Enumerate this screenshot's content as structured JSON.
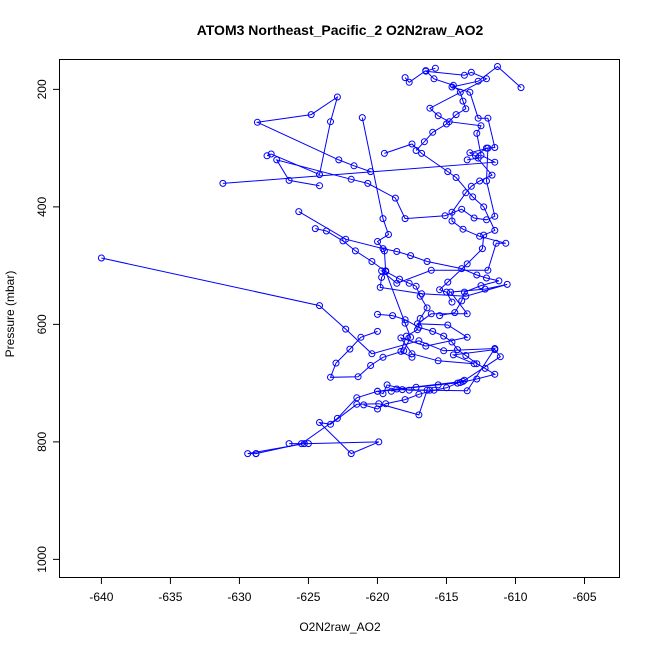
{
  "chart_data": {
    "type": "line",
    "title": "ATOM3 Northeast_Pacific_2 O2N2raw_AO2",
    "xlabel": "O2N2raw_AO2",
    "ylabel": "Pressure (mbar)",
    "xlim": [
      -643,
      -602.5
    ],
    "ylim": [
      1030,
      150
    ],
    "y_reversed": true,
    "grid": false,
    "legend": "none",
    "x_ticks": [
      -640,
      -635,
      -630,
      -625,
      -620,
      -615,
      -610,
      -605
    ],
    "y_ticks": [
      200,
      400,
      600,
      800,
      1000
    ],
    "series_color": "#0000ff",
    "marker": "open-circle",
    "series": [
      {
        "points": [
          [
            -628.8,
            820
          ],
          [
            -629.4,
            820
          ],
          [
            -625.3,
            803
          ],
          [
            -626.4,
            803
          ],
          [
            -625.0,
            803
          ],
          [
            -619.9,
            800
          ],
          [
            -621.9,
            820
          ],
          [
            -624.2,
            767
          ],
          [
            -623.4,
            770
          ],
          [
            -621.5,
            736
          ],
          [
            -619.9,
            735
          ],
          [
            -617.0,
            754
          ],
          [
            -616.4,
            712
          ],
          [
            -617.7,
            712
          ],
          [
            -619.3,
            703
          ],
          [
            -619.6,
            718
          ],
          [
            -620.0,
            714
          ],
          [
            -613.8,
            697
          ],
          [
            -611.1,
            655
          ],
          [
            -611.5,
            643
          ],
          [
            -614.5,
            652
          ],
          [
            -613.0,
            667
          ],
          [
            -615.6,
            662
          ],
          [
            -617.5,
            650
          ],
          [
            -618.3,
            623
          ],
          [
            -616.5,
            637
          ],
          [
            -613.5,
            622
          ],
          [
            -614.9,
            601
          ],
          [
            -617.1,
            599
          ],
          [
            -616.1,
            582
          ],
          [
            -613.5,
            582
          ],
          [
            -614.7,
            545
          ],
          [
            -612.2,
            540
          ],
          [
            -610.6,
            532
          ],
          [
            -613.6,
            552
          ],
          [
            -616.8,
            548
          ],
          [
            -619.8,
            537
          ],
          [
            -619.7,
            520
          ],
          [
            -619.4,
            509
          ],
          [
            -619.7,
            509
          ],
          [
            -618.6,
            530
          ],
          [
            -616.1,
            508
          ],
          [
            -612.0,
            508
          ],
          [
            -611.4,
            462
          ],
          [
            -610.7,
            462
          ],
          [
            -612.6,
            450
          ],
          [
            -613.8,
            438
          ],
          [
            -614.6,
            424
          ],
          [
            -614.6,
            409
          ],
          [
            -613.6,
            376
          ],
          [
            -613.2,
            365
          ],
          [
            -612.6,
            356
          ],
          [
            -611.7,
            346
          ],
          [
            -612.9,
            313
          ],
          [
            -612.1,
            300
          ],
          [
            -611.5,
            299
          ],
          [
            -612.0,
            249
          ],
          [
            -612.7,
            249
          ],
          [
            -613.3,
            205
          ],
          [
            -614.6,
            196
          ],
          [
            -612.7,
            186
          ],
          [
            -611.3,
            161
          ],
          [
            -609.6,
            197
          ]
        ]
      },
      {
        "points": [
          [
            -640.0,
            487
          ],
          [
            -624.2,
            568
          ],
          [
            -622.3,
            608
          ],
          [
            -620.4,
            650
          ],
          [
            -617.0,
            628
          ],
          [
            -615.2,
            645
          ],
          [
            -611.5,
            641
          ],
          [
            -613.5,
            713
          ],
          [
            -616.2,
            712
          ],
          [
            -618.2,
            711
          ],
          [
            -620.0,
            714
          ],
          [
            -621.5,
            725
          ],
          [
            -622.9,
            760
          ],
          [
            -625.5,
            803
          ],
          [
            -628.8,
            820
          ]
        ]
      },
      {
        "points": [
          [
            -631.2,
            360
          ],
          [
            -611.5,
            324
          ],
          [
            -612.5,
            312
          ],
          [
            -612.8,
            275
          ],
          [
            -612.5,
            262
          ],
          [
            -614.8,
            255
          ],
          [
            -615.6,
            245
          ],
          [
            -616.2,
            232
          ],
          [
            -612.1,
            182
          ],
          [
            -613.2,
            171
          ],
          [
            -613.7,
            176
          ],
          [
            -616.5,
            169
          ],
          [
            -615.8,
            164
          ]
        ]
      },
      {
        "points": [
          [
            -624.2,
            364
          ],
          [
            -626.4,
            355
          ],
          [
            -627.3,
            320
          ],
          [
            -621.9,
            353
          ],
          [
            -620.7,
            360
          ],
          [
            -618.7,
            385
          ],
          [
            -618.0,
            420
          ],
          [
            -615.1,
            415
          ],
          [
            -613.9,
            404
          ],
          [
            -613.0,
            419
          ],
          [
            -612.1,
            422
          ],
          [
            -611.5,
            416
          ],
          [
            -612.1,
            356
          ],
          [
            -612.0,
            300
          ],
          [
            -613.3,
            308
          ],
          [
            -612.7,
            317
          ],
          [
            -613.5,
            320
          ]
        ]
      },
      {
        "points": [
          [
            -625.7,
            408
          ],
          [
            -622.3,
            455
          ],
          [
            -619.6,
            471
          ],
          [
            -618.6,
            476
          ],
          [
            -617.6,
            483
          ],
          [
            -616.4,
            493
          ],
          [
            -613.9,
            505
          ],
          [
            -612.8,
            516
          ],
          [
            -612.1,
            521
          ],
          [
            -611.2,
            526
          ],
          [
            -612.5,
            534
          ],
          [
            -613.7,
            545
          ],
          [
            -613.9,
            560
          ],
          [
            -614.4,
            580
          ],
          [
            -615.5,
            585
          ]
        ]
      },
      {
        "points": [
          [
            -624.5,
            437
          ],
          [
            -623.7,
            441
          ],
          [
            -622.5,
            458
          ],
          [
            -621.6,
            475
          ],
          [
            -620.4,
            493
          ],
          [
            -619.4,
            510
          ],
          [
            -618.4,
            523
          ],
          [
            -617.7,
            530
          ],
          [
            -617.2,
            535
          ],
          [
            -616.9,
            552
          ],
          [
            -616.4,
            572
          ],
          [
            -616.9,
            590
          ],
          [
            -617.1,
            609
          ],
          [
            -617.9,
            620
          ],
          [
            -618.3,
            646
          ],
          [
            -617.5,
            656
          ]
        ]
      },
      {
        "points": [
          [
            -628.0,
            313
          ],
          [
            -627.7,
            310
          ],
          [
            -624.2,
            345
          ],
          [
            -623.4,
            255
          ],
          [
            -622.9,
            213
          ],
          [
            -624.8,
            243
          ],
          [
            -628.7,
            256
          ],
          [
            -622.8,
            320
          ],
          [
            -621.7,
            330
          ],
          [
            -620.5,
            340
          ]
        ]
      },
      {
        "points": [
          [
            -621.1,
            248
          ],
          [
            -619.6,
            420
          ],
          [
            -619.2,
            447
          ],
          [
            -620.0,
            459
          ],
          [
            -619.5,
            475
          ],
          [
            -619.4,
            510
          ],
          [
            -618.0,
            598
          ],
          [
            -617.6,
            622
          ],
          [
            -618.1,
            645
          ],
          [
            -619.6,
            656
          ],
          [
            -620.5,
            670
          ],
          [
            -621.4,
            689
          ],
          [
            -623.4,
            690
          ],
          [
            -623.0,
            666
          ],
          [
            -622.0,
            642
          ],
          [
            -621.2,
            622
          ],
          [
            -620.0,
            612
          ]
        ]
      },
      {
        "points": [
          [
            -619.5,
            309
          ],
          [
            -617.5,
            293
          ],
          [
            -616.8,
            309
          ],
          [
            -614.9,
            340
          ],
          [
            -614.3,
            350
          ],
          [
            -613.1,
            383
          ],
          [
            -612.3,
            400
          ],
          [
            -611.5,
            440
          ],
          [
            -612.3,
            448
          ],
          [
            -612.4,
            471
          ],
          [
            -613.5,
            497
          ],
          [
            -614.9,
            528
          ],
          [
            -615.5,
            541
          ],
          [
            -615.0,
            545
          ],
          [
            -614.6,
            562
          ]
        ]
      },
      {
        "points": [
          [
            -618.0,
            180
          ],
          [
            -617.7,
            188
          ],
          [
            -616.5,
            168
          ],
          [
            -615.9,
            182
          ],
          [
            -614.5,
            193
          ],
          [
            -614.0,
            205
          ],
          [
            -613.8,
            220
          ],
          [
            -613.6,
            233
          ],
          [
            -614.3,
            243
          ],
          [
            -615.0,
            259
          ],
          [
            -616.0,
            273
          ],
          [
            -616.6,
            289
          ],
          [
            -617.2,
            304
          ]
        ]
      },
      {
        "points": [
          [
            -620.0,
            583
          ],
          [
            -618.9,
            585
          ],
          [
            -618.0,
            592
          ],
          [
            -617.0,
            605
          ],
          [
            -616.0,
            612
          ],
          [
            -615.2,
            620
          ],
          [
            -614.6,
            630
          ],
          [
            -614.2,
            643
          ],
          [
            -613.6,
            653
          ],
          [
            -612.8,
            667
          ],
          [
            -612.2,
            675
          ],
          [
            -611.5,
            685
          ],
          [
            -612.8,
            693
          ],
          [
            -614.0,
            699
          ],
          [
            -615.6,
            703
          ],
          [
            -617.2,
            707
          ],
          [
            -618.6,
            710
          ],
          [
            -619.0,
            714
          ]
        ]
      },
      {
        "points": [
          [
            -621.0,
            737
          ],
          [
            -620.0,
            744
          ],
          [
            -619.4,
            735
          ],
          [
            -618.0,
            728
          ],
          [
            -617.0,
            719
          ],
          [
            -615.9,
            712
          ],
          [
            -615.0,
            708
          ],
          [
            -614.2,
            700
          ],
          [
            -613.7,
            695
          ]
        ]
      }
    ]
  }
}
